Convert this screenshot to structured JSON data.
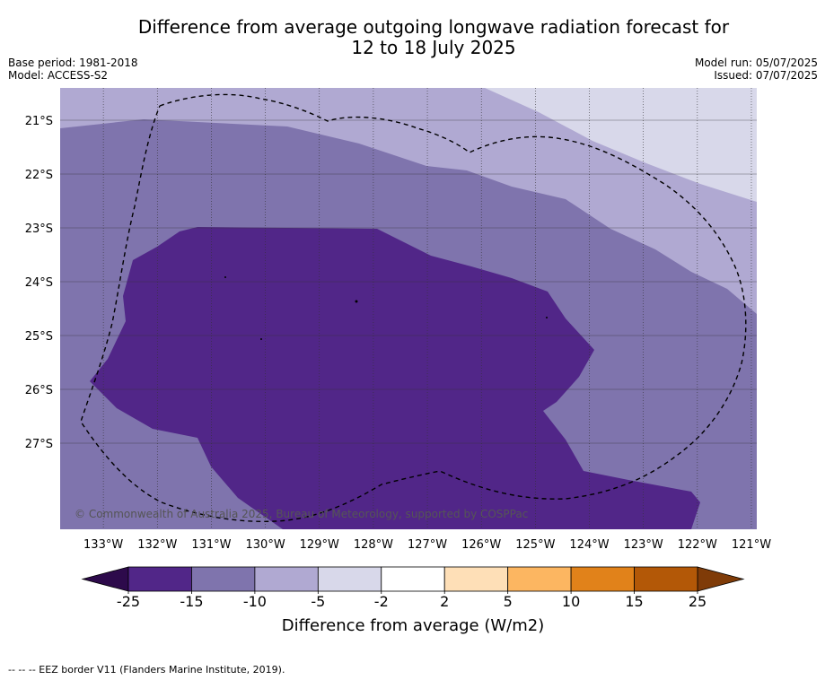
{
  "title": {
    "line1": "Difference from average outgoing longwave radiation forecast for",
    "line2": "12 to 18 July 2025"
  },
  "meta_left": {
    "base_period": "Base period: 1981-2018",
    "model": "Model: ACCESS-S2"
  },
  "meta_right": {
    "model_run": "Model run: 05/07/2025",
    "issued": "Issued: 07/07/2025"
  },
  "map": {
    "lon_ticks": [
      "133°W",
      "132°W",
      "131°W",
      "130°W",
      "129°W",
      "128°W",
      "127°W",
      "126°W",
      "125°W",
      "124°W",
      "123°W",
      "122°W",
      "121°W"
    ],
    "lat_ticks": [
      "21°S",
      "22°S",
      "23°S",
      "24°S",
      "25°S",
      "26°S",
      "27°S"
    ],
    "lon_range": [
      -133.8,
      -120.9
    ],
    "lat_range": [
      -28.6,
      -20.4
    ],
    "copyright": "© Commonwealth of Australia 2025, Bureau of Meteorology, supported by COSPPac",
    "colors": {
      "light": "#d8d8ea",
      "mid_light": "#b0a9d2",
      "mid": "#7f74ad",
      "dark": "#512688"
    }
  },
  "colorbar": {
    "label": "Difference from average (W/m2)",
    "ticks": [
      "-25",
      "-15",
      "-10",
      "-5",
      "-2",
      "2",
      "5",
      "10",
      "15",
      "25"
    ],
    "bins": [
      {
        "from": -25,
        "to": -15,
        "color": "#512688"
      },
      {
        "from": -15,
        "to": -10,
        "color": "#7f74ad"
      },
      {
        "from": -10,
        "to": -5,
        "color": "#b0a9d2"
      },
      {
        "from": -5,
        "to": -2,
        "color": "#d8d8ea"
      },
      {
        "from": -2,
        "to": 2,
        "color": "#ffffff"
      },
      {
        "from": 2,
        "to": 5,
        "color": "#fedfb7"
      },
      {
        "from": 5,
        "to": 10,
        "color": "#fcb661"
      },
      {
        "from": 10,
        "to": 15,
        "color": "#e1821a"
      },
      {
        "from": 15,
        "to": 25,
        "color": "#b35807"
      }
    ],
    "extend_min_color": "#2d0a4b",
    "extend_max_color": "#7f3b08"
  },
  "footer": {
    "legend": "-- -- -- EEZ border V11 (Flanders Marine Institute, 2019)."
  }
}
